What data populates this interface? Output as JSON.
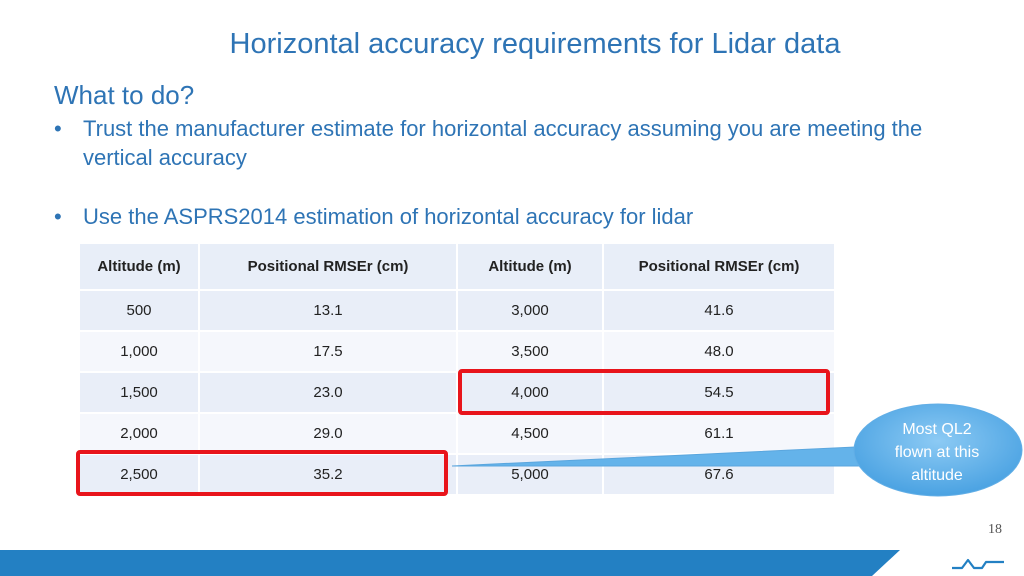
{
  "slide": {
    "title": "Horizontal accuracy requirements for Lidar data",
    "subhead": "What to do?",
    "bullets": [
      "Trust the manufacturer estimate for horizontal accuracy assuming you are meeting the vertical accuracy",
      "Use the ASPRS2014 estimation of horizontal accuracy for lidar"
    ],
    "bullet_marker": "•",
    "page_number": "18"
  },
  "table": {
    "headers": [
      "Altitude (m)",
      "Positional RMSEr (cm)",
      "Altitude (m)",
      "Positional RMSEr (cm)"
    ],
    "rows": [
      [
        "500",
        "13.1",
        "3,000",
        "41.6"
      ],
      [
        "1,000",
        "17.5",
        "3,500",
        "48.0"
      ],
      [
        "1,500",
        "23.0",
        "4,000",
        "54.5"
      ],
      [
        "2,000",
        "29.0",
        "4,500",
        "61.1"
      ],
      [
        "2,500",
        "35.2",
        "5,000",
        "67.6"
      ]
    ],
    "highlighted_rows": [
      {
        "row": "4,000 / 54.5",
        "color": "#e8141b"
      },
      {
        "row": "2,500 / 35.2",
        "color": "#e8141b"
      }
    ]
  },
  "callout": {
    "text_lines": [
      "Most QL2",
      "flown at this",
      "altitude"
    ],
    "fill_color": "#5aaee8"
  },
  "footer": {
    "bar_color": "#2380c3",
    "logo_icon": "w-logo-icon"
  },
  "colors": {
    "title": "#2e74b5",
    "table_header_bg": "#e8eef8",
    "table_row_bg": "#e9eef8"
  }
}
